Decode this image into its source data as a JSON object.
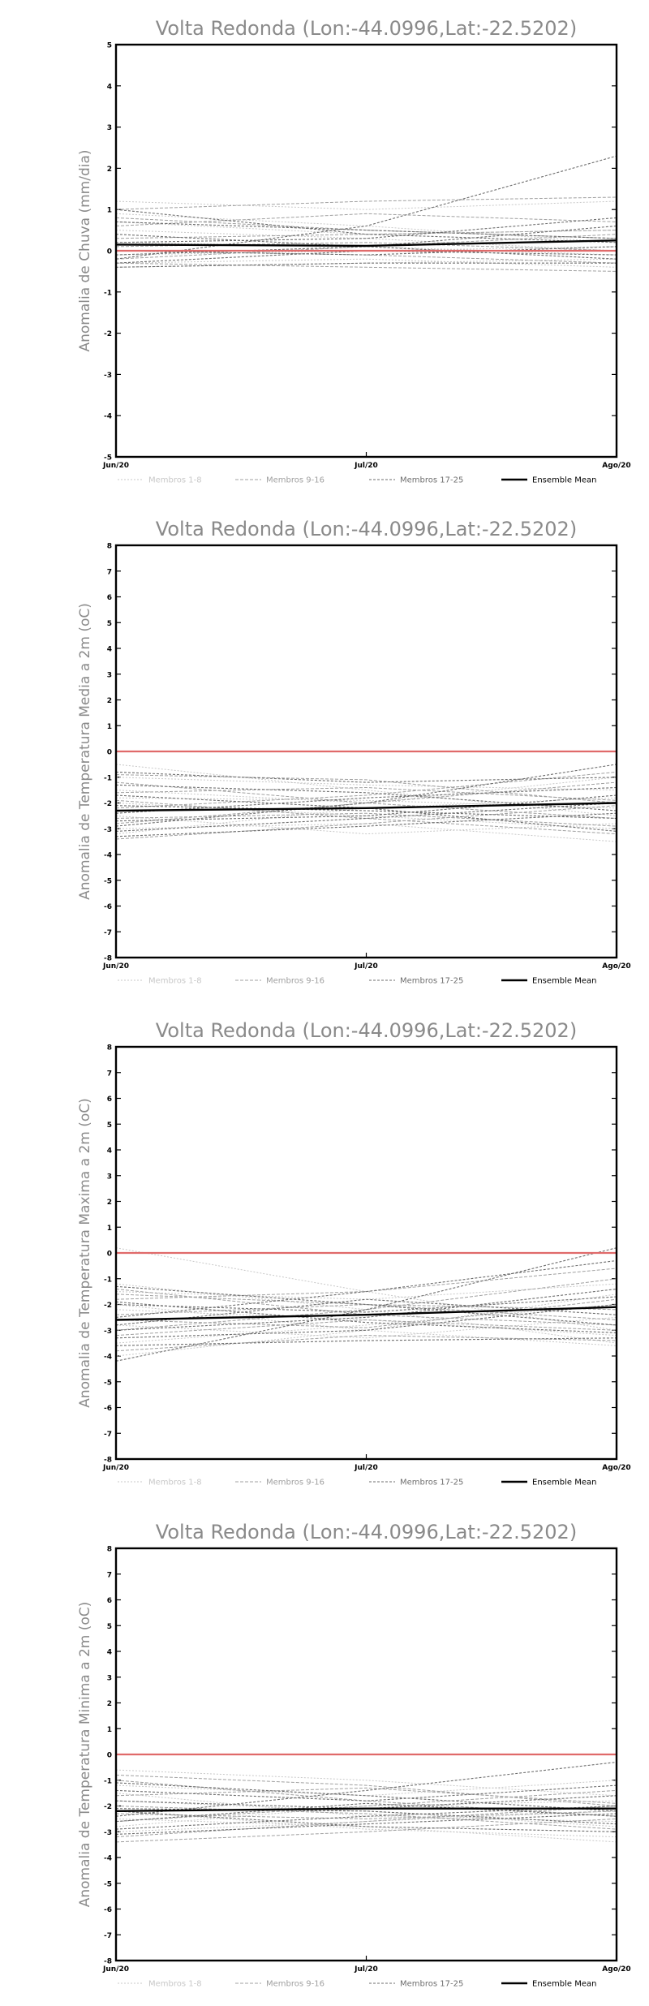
{
  "colors": {
    "zero_line": "#e06a6a",
    "members_1_8": "#c8c8c8",
    "members_9_16": "#a0a0a0",
    "members_17_25": "#6e6e6e",
    "ensemble_mean": "#000000",
    "title_text": "#8a8a8a",
    "axis_label_text": "#8a8a8a"
  },
  "chart_data": [
    {
      "type": "line",
      "title": "Volta Redonda (Lon:-44.0996,Lat:-22.5202)",
      "xlabel": "",
      "ylabel": "Anomalia de Chuva (mm/dia)",
      "categories": [
        "Jun/20",
        "Jul/20",
        "Ago/20"
      ],
      "ylim": [
        -5,
        5
      ],
      "yticks": [
        5,
        4,
        3,
        2,
        1,
        0,
        -1,
        -2,
        -3,
        -4,
        -5
      ],
      "zero_line": 0,
      "legend": [
        "Membros 1-8",
        "Membros 9-16",
        "Membros 17-25",
        "Ensemble Mean"
      ],
      "legend_placement": "bottom",
      "series": [
        {
          "group": 1,
          "values": [
            1.2,
            1.0,
            1.2
          ]
        },
        {
          "group": 1,
          "values": [
            0.9,
            0.6,
            0.2
          ]
        },
        {
          "group": 1,
          "values": [
            0.5,
            0.3,
            0.0
          ]
        },
        {
          "group": 1,
          "values": [
            0.2,
            0.1,
            -0.1
          ]
        },
        {
          "group": 1,
          "values": [
            -0.1,
            0.0,
            0.1
          ]
        },
        {
          "group": 1,
          "values": [
            -0.3,
            -0.2,
            -0.4
          ]
        },
        {
          "group": 1,
          "values": [
            0.7,
            0.4,
            0.5
          ]
        },
        {
          "group": 1,
          "values": [
            -0.4,
            -0.3,
            -0.2
          ]
        },
        {
          "group": 2,
          "values": [
            0.8,
            0.5,
            0.3
          ]
        },
        {
          "group": 2,
          "values": [
            0.3,
            0.4,
            0.5
          ]
        },
        {
          "group": 2,
          "values": [
            0.0,
            -0.1,
            -0.3
          ]
        },
        {
          "group": 2,
          "values": [
            -0.2,
            0.1,
            0.4
          ]
        },
        {
          "group": 2,
          "values": [
            0.6,
            0.9,
            0.7
          ]
        },
        {
          "group": 2,
          "values": [
            -0.3,
            -0.4,
            -0.5
          ]
        },
        {
          "group": 2,
          "values": [
            0.1,
            0.2,
            0.0
          ]
        },
        {
          "group": 2,
          "values": [
            1.0,
            1.2,
            1.3
          ]
        },
        {
          "group": 3,
          "values": [
            -0.2,
            0.6,
            2.3
          ]
        },
        {
          "group": 3,
          "values": [
            1.0,
            0.4,
            0.2
          ]
        },
        {
          "group": 3,
          "values": [
            0.4,
            0.1,
            -0.2
          ]
        },
        {
          "group": 3,
          "values": [
            -0.1,
            0.1,
            0.6
          ]
        },
        {
          "group": 3,
          "values": [
            0.2,
            0.3,
            0.8
          ]
        },
        {
          "group": 3,
          "values": [
            -0.4,
            -0.3,
            -0.3
          ]
        },
        {
          "group": 3,
          "values": [
            0.7,
            0.5,
            0.3
          ]
        },
        {
          "group": 3,
          "values": [
            0.0,
            -0.1,
            0.1
          ]
        },
        {
          "group": 3,
          "values": [
            -0.3,
            0.0,
            -0.1
          ]
        },
        {
          "group": 4,
          "values": [
            0.15,
            0.12,
            0.25
          ]
        }
      ]
    },
    {
      "type": "line",
      "title": "Volta Redonda (Lon:-44.0996,Lat:-22.5202)",
      "xlabel": "",
      "ylabel": "Anomalia de Temperatura Media a 2m (oC)",
      "categories": [
        "Jun/20",
        "Jul/20",
        "Ago/20"
      ],
      "ylim": [
        -8,
        8
      ],
      "yticks": [
        8,
        7,
        6,
        5,
        4,
        3,
        2,
        1,
        0,
        -1,
        -2,
        -3,
        -4,
        -5,
        -6,
        -7,
        -8
      ],
      "zero_line": 0,
      "legend": [
        "Membros 1-8",
        "Membros 9-16",
        "Membros 17-25",
        "Ensemble Mean"
      ],
      "legend_placement": "bottom",
      "series": [
        {
          "group": 1,
          "values": [
            -0.5,
            -1.5,
            -2.5
          ]
        },
        {
          "group": 1,
          "values": [
            -1.0,
            -1.3,
            -1.5
          ]
        },
        {
          "group": 1,
          "values": [
            -2.0,
            -2.5,
            -3.0
          ]
        },
        {
          "group": 1,
          "values": [
            -3.0,
            -2.8,
            -3.5
          ]
        },
        {
          "group": 1,
          "values": [
            -1.5,
            -2.0,
            -1.0
          ]
        },
        {
          "group": 1,
          "values": [
            -2.5,
            -3.2,
            -2.8
          ]
        },
        {
          "group": 1,
          "values": [
            -1.8,
            -1.9,
            -2.2
          ]
        },
        {
          "group": 1,
          "values": [
            -3.2,
            -2.2,
            -1.8
          ]
        },
        {
          "group": 2,
          "values": [
            -1.2,
            -2.0,
            -2.6
          ]
        },
        {
          "group": 2,
          "values": [
            -2.8,
            -2.0,
            -1.2
          ]
        },
        {
          "group": 2,
          "values": [
            -1.9,
            -2.6,
            -3.2
          ]
        },
        {
          "group": 2,
          "values": [
            -2.2,
            -1.7,
            -0.8
          ]
        },
        {
          "group": 2,
          "values": [
            -3.4,
            -2.8,
            -2.1
          ]
        },
        {
          "group": 2,
          "values": [
            -1.6,
            -1.4,
            -1.9
          ]
        },
        {
          "group": 2,
          "values": [
            -2.6,
            -2.4,
            -2.9
          ]
        },
        {
          "group": 2,
          "values": [
            -0.9,
            -1.1,
            -2.0
          ]
        },
        {
          "group": 3,
          "values": [
            -2.9,
            -2.0,
            -0.5
          ]
        },
        {
          "group": 3,
          "values": [
            -2.4,
            -1.8,
            -1.4
          ]
        },
        {
          "group": 3,
          "values": [
            -3.3,
            -2.9,
            -2.4
          ]
        },
        {
          "group": 3,
          "values": [
            -1.3,
            -1.6,
            -2.3
          ]
        },
        {
          "group": 3,
          "values": [
            -2.1,
            -2.3,
            -2.6
          ]
        },
        {
          "group": 3,
          "values": [
            -0.8,
            -1.2,
            -1.0
          ]
        },
        {
          "group": 3,
          "values": [
            -2.7,
            -2.5,
            -1.7
          ]
        },
        {
          "group": 3,
          "values": [
            -1.7,
            -2.2,
            -3.1
          ]
        },
        {
          "group": 3,
          "values": [
            -3.1,
            -2.6,
            -2.0
          ]
        },
        {
          "group": 4,
          "values": [
            -2.3,
            -2.2,
            -2.0
          ]
        }
      ]
    },
    {
      "type": "line",
      "title": "Volta Redonda (Lon:-44.0996,Lat:-22.5202)",
      "xlabel": "",
      "ylabel": "Anomalia de Temperatura Maxima a 2m (oC)",
      "categories": [
        "Jun/20",
        "Jul/20",
        "Ago/20"
      ],
      "ylim": [
        -8,
        8
      ],
      "yticks": [
        8,
        7,
        6,
        5,
        4,
        3,
        2,
        1,
        0,
        -1,
        -2,
        -3,
        -4,
        -5,
        -6,
        -7,
        -8
      ],
      "zero_line": 0,
      "legend": [
        "Membros 1-8",
        "Membros 9-16",
        "Membros 17-25",
        "Ensemble Mean"
      ],
      "legend_placement": "bottom",
      "series": [
        {
          "group": 1,
          "values": [
            0.2,
            -1.5,
            -3.0
          ]
        },
        {
          "group": 1,
          "values": [
            -1.2,
            -2.2,
            -3.5
          ]
        },
        {
          "group": 1,
          "values": [
            -2.0,
            -3.0,
            -3.6
          ]
        },
        {
          "group": 1,
          "values": [
            -3.5,
            -2.8,
            -2.0
          ]
        },
        {
          "group": 1,
          "values": [
            -1.5,
            -1.8,
            -1.2
          ]
        },
        {
          "group": 1,
          "values": [
            -2.8,
            -3.3,
            -2.5
          ]
        },
        {
          "group": 1,
          "values": [
            -4.0,
            -3.0,
            -1.6
          ]
        },
        {
          "group": 1,
          "values": [
            -2.2,
            -2.6,
            -3.2
          ]
        },
        {
          "group": 2,
          "values": [
            -1.4,
            -2.4,
            -2.8
          ]
        },
        {
          "group": 2,
          "values": [
            -3.0,
            -2.2,
            -1.0
          ]
        },
        {
          "group": 2,
          "values": [
            -2.4,
            -2.0,
            -2.6
          ]
        },
        {
          "group": 2,
          "values": [
            -1.8,
            -1.5,
            -0.6
          ]
        },
        {
          "group": 2,
          "values": [
            -3.8,
            -3.2,
            -3.4
          ]
        },
        {
          "group": 2,
          "values": [
            -2.6,
            -2.9,
            -1.8
          ]
        },
        {
          "group": 2,
          "values": [
            -1.6,
            -2.0,
            -2.2
          ]
        },
        {
          "group": 2,
          "values": [
            -3.2,
            -2.6,
            -3.0
          ]
        },
        {
          "group": 3,
          "values": [
            -4.2,
            -2.2,
            0.2
          ]
        },
        {
          "group": 3,
          "values": [
            -2.5,
            -1.5,
            -0.3
          ]
        },
        {
          "group": 3,
          "values": [
            -3.3,
            -3.0,
            -2.0
          ]
        },
        {
          "group": 3,
          "values": [
            -1.3,
            -2.0,
            -2.8
          ]
        },
        {
          "group": 3,
          "values": [
            -2.0,
            -2.3,
            -1.7
          ]
        },
        {
          "group": 3,
          "values": [
            -3.6,
            -3.4,
            -3.3
          ]
        },
        {
          "group": 3,
          "values": [
            -2.8,
            -1.8,
            -2.4
          ]
        },
        {
          "group": 3,
          "values": [
            -1.9,
            -2.7,
            -3.1
          ]
        },
        {
          "group": 3,
          "values": [
            -3.0,
            -2.5,
            -1.4
          ]
        },
        {
          "group": 4,
          "values": [
            -2.6,
            -2.4,
            -2.1
          ]
        }
      ]
    },
    {
      "type": "line",
      "title": "Volta Redonda (Lon:-44.0996,Lat:-22.5202)",
      "xlabel": "",
      "ylabel": "Anomalia de Temperatura Minima a 2m (oC)",
      "categories": [
        "Jun/20",
        "Jul/20",
        "Ago/20"
      ],
      "ylim": [
        -8,
        8
      ],
      "yticks": [
        8,
        7,
        6,
        5,
        4,
        3,
        2,
        1,
        0,
        -1,
        -2,
        -3,
        -4,
        -5,
        -6,
        -7,
        -8
      ],
      "zero_line": 0,
      "legend": [
        "Membros 1-8",
        "Membros 9-16",
        "Membros 17-25",
        "Ensemble Mean"
      ],
      "legend_placement": "bottom",
      "series": [
        {
          "group": 1,
          "values": [
            -0.6,
            -1.0,
            -1.6
          ]
        },
        {
          "group": 1,
          "values": [
            -1.8,
            -2.2,
            -2.8
          ]
        },
        {
          "group": 1,
          "values": [
            -2.5,
            -2.8,
            -3.4
          ]
        },
        {
          "group": 1,
          "values": [
            -3.0,
            -2.6,
            -2.2
          ]
        },
        {
          "group": 1,
          "values": [
            -1.2,
            -1.6,
            -1.0
          ]
        },
        {
          "group": 1,
          "values": [
            -2.2,
            -2.9,
            -3.2
          ]
        },
        {
          "group": 1,
          "values": [
            -2.8,
            -2.0,
            -1.8
          ]
        },
        {
          "group": 1,
          "values": [
            -1.5,
            -2.4,
            -2.6
          ]
        },
        {
          "group": 2,
          "values": [
            -1.0,
            -1.8,
            -2.4
          ]
        },
        {
          "group": 2,
          "values": [
            -3.2,
            -2.6,
            -2.0
          ]
        },
        {
          "group": 2,
          "values": [
            -2.0,
            -2.3,
            -2.9
          ]
        },
        {
          "group": 2,
          "values": [
            -2.6,
            -2.0,
            -1.4
          ]
        },
        {
          "group": 2,
          "values": [
            -1.6,
            -1.3,
            -1.9
          ]
        },
        {
          "group": 2,
          "values": [
            -3.4,
            -3.0,
            -2.5
          ]
        },
        {
          "group": 2,
          "values": [
            -2.3,
            -2.5,
            -2.2
          ]
        },
        {
          "group": 2,
          "values": [
            -0.8,
            -1.2,
            -2.0
          ]
        },
        {
          "group": 3,
          "values": [
            -2.4,
            -1.4,
            -0.3
          ]
        },
        {
          "group": 3,
          "values": [
            -1.4,
            -1.8,
            -1.2
          ]
        },
        {
          "group": 3,
          "values": [
            -2.9,
            -2.4,
            -2.0
          ]
        },
        {
          "group": 3,
          "values": [
            -2.1,
            -2.2,
            -2.7
          ]
        },
        {
          "group": 3,
          "values": [
            -3.1,
            -2.7,
            -2.3
          ]
        },
        {
          "group": 3,
          "values": [
            -1.8,
            -2.1,
            -1.6
          ]
        },
        {
          "group": 3,
          "values": [
            -2.6,
            -1.9,
            -2.4
          ]
        },
        {
          "group": 3,
          "values": [
            -1.1,
            -1.6,
            -2.2
          ]
        },
        {
          "group": 3,
          "values": [
            -2.2,
            -2.8,
            -3.0
          ]
        },
        {
          "group": 4,
          "values": [
            -2.2,
            -2.1,
            -2.1
          ]
        }
      ]
    }
  ]
}
